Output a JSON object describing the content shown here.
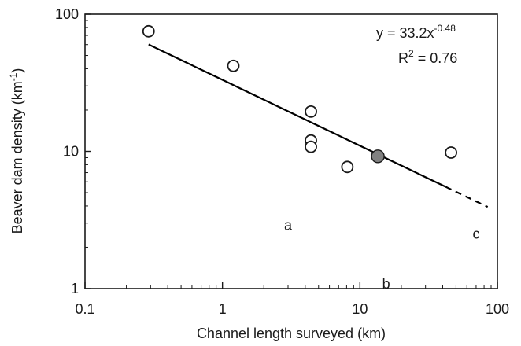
{
  "chart_data": {
    "type": "scatter",
    "xscale": "log",
    "yscale": "log",
    "xlim": [
      0.1,
      100
    ],
    "ylim": [
      1,
      100
    ],
    "xlabel": "Channel length surveyed (km)",
    "ylabel_prefix": "Beaver dam density (km",
    "ylabel_sup": "-1",
    "ylabel_suffix": ")",
    "x_ticks": [
      {
        "value": 0.1,
        "label": "0.1"
      },
      {
        "value": 1,
        "label": "1"
      },
      {
        "value": 10,
        "label": "10"
      },
      {
        "value": 100,
        "label": "100"
      }
    ],
    "y_ticks": [
      {
        "value": 1,
        "label": "1"
      },
      {
        "value": 10,
        "label": "10"
      },
      {
        "value": 100,
        "label": "100"
      }
    ],
    "points_open": [
      {
        "x": 0.29,
        "y": 75
      },
      {
        "x": 1.2,
        "y": 42
      },
      {
        "x": 4.4,
        "y": 19.5
      },
      {
        "x": 4.4,
        "y": 12
      },
      {
        "x": 4.4,
        "y": 10.8
      },
      {
        "x": 8.1,
        "y": 7.7
      },
      {
        "x": 46,
        "y": 9.8
      }
    ],
    "points_filled": [
      {
        "x": 13.5,
        "y": 9.2
      }
    ],
    "fit": {
      "a": 33.2,
      "b": -0.48,
      "solid_range": [
        0.29,
        42
      ],
      "dashed_range": [
        42,
        85
      ]
    },
    "equation": {
      "text": "y = 33.2x",
      "sup": "-0.48"
    },
    "r2": {
      "base": "R",
      "sup": "2",
      "rest": " = 0.76"
    },
    "annotations": [
      {
        "text": "a",
        "x": 3.0,
        "y": 2.9
      },
      {
        "text": "b",
        "x": 15.5,
        "y": 1.08
      },
      {
        "text": "c",
        "x": 70,
        "y": 2.5
      }
    ],
    "grid": false,
    "legend": "none",
    "colors": {
      "line": "#000000",
      "marker_open_stroke": "#1a1a1a",
      "marker_open_fill": "#ffffff",
      "marker_filled": "#808080"
    }
  }
}
